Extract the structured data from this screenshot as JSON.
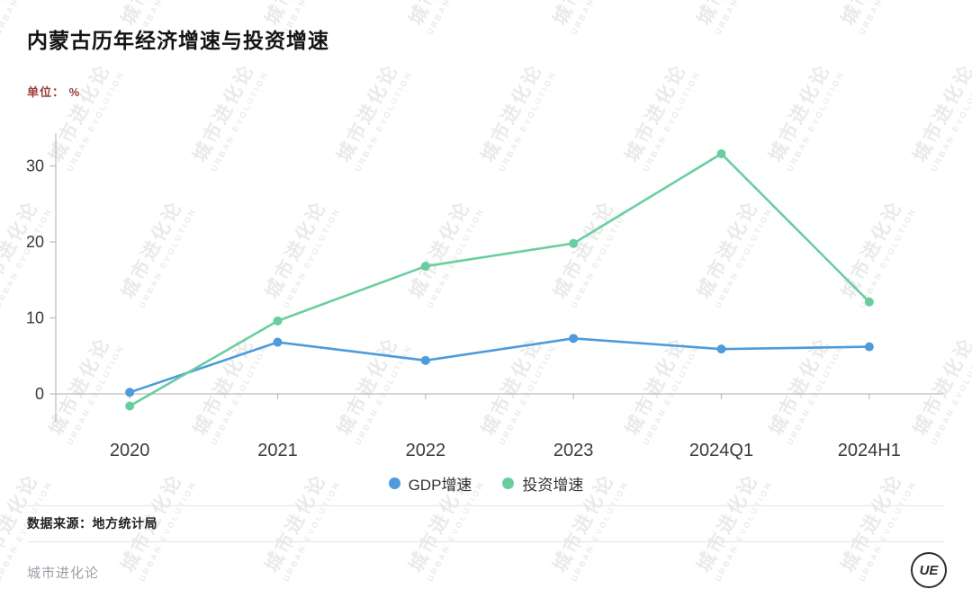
{
  "header": {
    "title": "内蒙古历年经济增速与投资增速",
    "unit_label": "单位： %"
  },
  "chart_data": {
    "type": "line",
    "categories": [
      "2020",
      "2021",
      "2022",
      "2023",
      "2024Q1",
      "2024H1"
    ],
    "series": [
      {
        "name": "GDP增速",
        "color": "#4d9bda",
        "values": [
          0.2,
          6.8,
          4.4,
          7.3,
          5.9,
          6.2
        ]
      },
      {
        "name": "投资增速",
        "color": "#69ce9f",
        "values": [
          -1.6,
          9.6,
          16.8,
          19.8,
          31.6,
          12.1
        ]
      }
    ],
    "title": "内蒙古历年经济增速与投资增速",
    "xlabel": "",
    "ylabel": "%",
    "yticks": [
      0,
      10,
      20,
      30
    ],
    "ylim": [
      -4,
      34
    ],
    "grid": false,
    "legend_position": "bottom"
  },
  "footer": {
    "source": "数据来源：地方统计局",
    "brand": "城市进化论",
    "logo_text": "UE"
  },
  "watermark": {
    "cn": "城市进化论",
    "en": "URBAN EVOLUTION"
  },
  "colors": {
    "axis": "#bcbcbc",
    "tick_label": "#3a3a3a",
    "unit_label": "#9a3b3b"
  }
}
